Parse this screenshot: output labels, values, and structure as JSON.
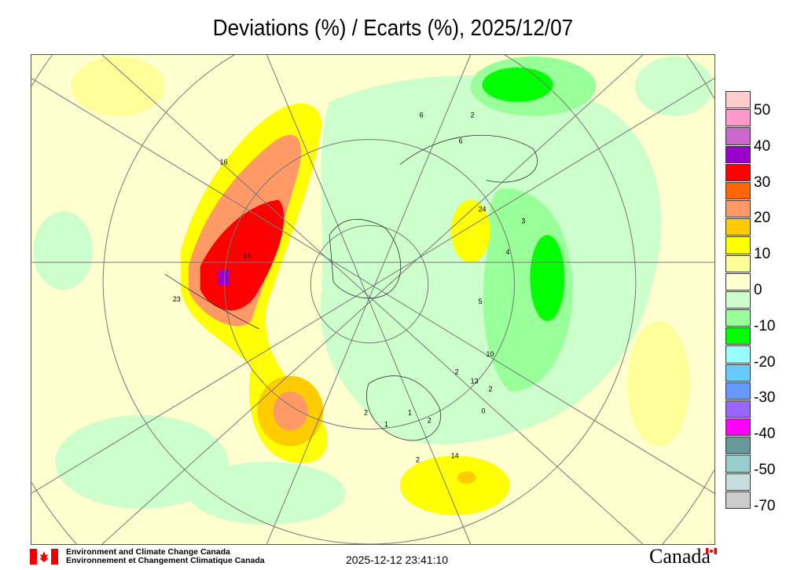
{
  "title": "Deviations (%) / Ecarts (%), 2025/12/07",
  "legend": {
    "colors": [
      "#ffccd0",
      "#ff99cc",
      "#cc66cc",
      "#9900cc",
      "#ff0000",
      "#ff6600",
      "#ff9966",
      "#ffcc00",
      "#ffff00",
      "#ffff99",
      "#ffffd0",
      "#ccffcc",
      "#99ff99",
      "#00ff00",
      "#99ffff",
      "#66ccff",
      "#6699ff",
      "#9966ff",
      "#ff00ff",
      "#669999",
      "#99cccc",
      "#c6dede",
      "#cccccc"
    ],
    "labels": [
      "50",
      "40",
      "30",
      "20",
      "10",
      "0",
      "-10",
      "-20",
      "-30",
      "-40",
      "-50",
      "-70"
    ]
  },
  "map": {
    "station_labels": [
      "16",
      "14",
      "23",
      "24",
      "3",
      "4",
      "5",
      "10",
      "13",
      "2",
      "2",
      "0",
      "2",
      "1",
      "1",
      "2",
      "2",
      "14",
      "6",
      "6",
      "2"
    ]
  },
  "footer": {
    "org_en": "Environment and Climate Change Canada",
    "org_fr": "Environnement et Changement Climatique Canada",
    "timestamp": "2025-12-12 23:41:10",
    "wordmark": "Canada"
  }
}
